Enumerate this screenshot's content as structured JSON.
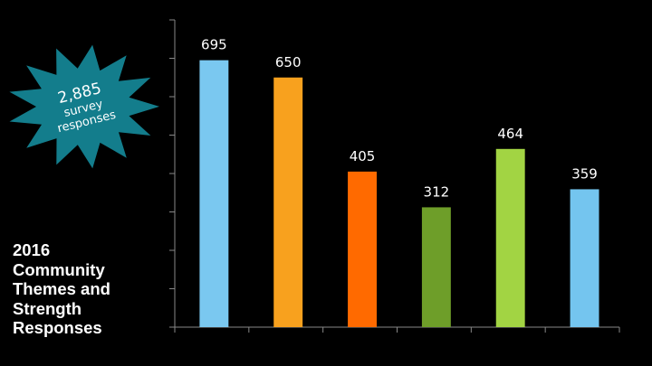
{
  "callout": {
    "count": "2,885",
    "text_line1": "survey",
    "text_line2": "responses",
    "burst_color": "#137d8c"
  },
  "slide_title": "2016\nCommunity\nThemes and\nStrength\nResponses",
  "chart_data": {
    "type": "bar",
    "title": "",
    "xlabel": "",
    "ylabel": "",
    "ylim": [
      0,
      800
    ],
    "y_gridlines": false,
    "y_tick_interval": 100,
    "tick_labels_shown": false,
    "categories": [
      "",
      "",
      "",
      "",
      "",
      ""
    ],
    "values": [
      695,
      650,
      405,
      312,
      464,
      359
    ],
    "data_labels": [
      "695",
      "650",
      "405",
      "312",
      "464",
      "359"
    ],
    "colors": [
      "#7ac8f0",
      "#f8a11e",
      "#ff6a00",
      "#6e9e29",
      "#a2d443",
      "#74c5ef"
    ],
    "axis_color": "#888888",
    "label_color": "#ffffff"
  }
}
